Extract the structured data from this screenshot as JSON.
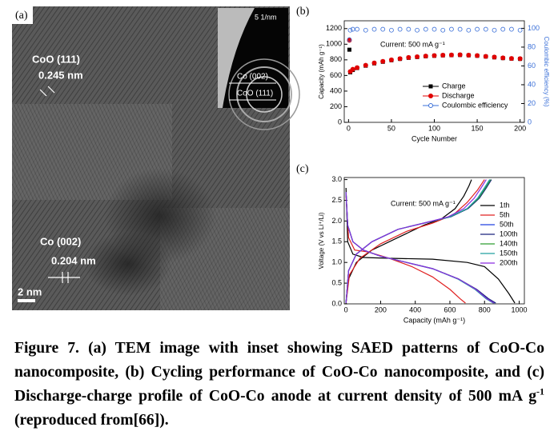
{
  "panel_a": {
    "label": "(a)",
    "annotations": [
      "CoO (111)",
      "0.245 nm",
      "Co (002)",
      "0.204 nm"
    ],
    "scale_bar": "2 nm",
    "inset": {
      "scale": "5 1/nm",
      "rings": [
        "Co  (002)",
        "CoO (111)"
      ]
    }
  },
  "chart_data": [
    {
      "type": "scatter",
      "panel_label": "(b)",
      "xlabel": "Cycle Number",
      "ylabel": "Capacity (mAh g⁻¹)",
      "y2label": "Coulombic efficiency (%)",
      "annotation": "Current: 500 mA g⁻¹",
      "x": [
        1,
        2,
        5,
        10,
        20,
        30,
        40,
        50,
        60,
        70,
        80,
        90,
        100,
        110,
        120,
        130,
        140,
        150,
        160,
        170,
        180,
        190,
        200
      ],
      "series": [
        {
          "name": "Charge",
          "color": "#000000",
          "marker": "square",
          "values": [
            930,
            640,
            670,
            695,
            725,
            755,
            775,
            795,
            812,
            826,
            836,
            845,
            852,
            857,
            860,
            862,
            858,
            852,
            842,
            832,
            822,
            815,
            812
          ]
        },
        {
          "name": "Discharge",
          "color": "#e00000",
          "marker": "circle",
          "values": [
            1050,
            650,
            680,
            700,
            730,
            760,
            780,
            800,
            815,
            830,
            840,
            848,
            855,
            860,
            862,
            865,
            860,
            855,
            845,
            835,
            825,
            818,
            815
          ]
        },
        {
          "name": "Coulombic efficiency",
          "color": "#3a6fd8",
          "marker": "open-circle",
          "axis": "y2",
          "values": [
            88,
            98,
            99,
            99,
            98,
            99,
            99,
            98,
            99,
            99,
            98,
            99,
            99,
            98,
            99,
            99,
            98,
            99,
            99,
            98,
            99,
            99,
            98
          ]
        }
      ],
      "xlim": [
        -5,
        205
      ],
      "xticks": [
        0,
        50,
        100,
        150,
        200
      ],
      "ylim": [
        0,
        1300
      ],
      "yticks": [
        0,
        200,
        400,
        600,
        800,
        1000,
        1200
      ],
      "y2lim": [
        0,
        108
      ],
      "y2ticks": [
        0,
        20,
        40,
        60,
        80,
        100
      ]
    },
    {
      "type": "line",
      "panel_label": "(c)",
      "xlabel": "Capacity (mAh g⁻¹)",
      "ylabel": "Voltage (V vs Li⁺/Li)",
      "annotation": "Current: 500 mA g⁻¹",
      "series": [
        {
          "name": "1th",
          "color": "#000000",
          "x": [
            0,
            10,
            40,
            100,
            250,
            500,
            700,
            800,
            880,
            940,
            975,
            null,
            0,
            15,
            60,
            150,
            300,
            450,
            550,
            630,
            680,
            710,
            725
          ],
          "values": [
            2.8,
            1.5,
            1.2,
            1.12,
            1.1,
            1.08,
            1.0,
            0.9,
            0.6,
            0.25,
            0.02,
            null,
            0.02,
            0.6,
            1.0,
            1.3,
            1.6,
            1.9,
            2.05,
            2.3,
            2.6,
            2.85,
            3.0
          ]
        },
        {
          "name": "5th",
          "color": "#e02020",
          "x": [
            0,
            15,
            50,
            130,
            250,
            380,
            500,
            600,
            660,
            690,
            null,
            0,
            20,
            80,
            200,
            350,
            500,
            620,
            700,
            760,
            800
          ],
          "values": [
            2.6,
            1.6,
            1.3,
            1.25,
            1.1,
            0.9,
            0.65,
            0.35,
            0.12,
            0.02,
            null,
            0.02,
            0.7,
            1.1,
            1.45,
            1.75,
            1.95,
            2.15,
            2.45,
            2.75,
            3.0
          ]
        },
        {
          "name": "50th",
          "color": "#2040e0",
          "x": [
            0,
            10,
            40,
            100,
            200,
            350,
            500,
            650,
            750,
            820,
            860,
            null,
            0,
            15,
            60,
            150,
            300,
            450,
            600,
            700,
            760,
            800,
            830
          ],
          "values": [
            2.7,
            1.9,
            1.5,
            1.3,
            1.15,
            1.0,
            0.85,
            0.6,
            0.35,
            0.12,
            0.02,
            null,
            0.02,
            0.8,
            1.2,
            1.5,
            1.8,
            1.95,
            2.1,
            2.3,
            2.55,
            2.8,
            3.0
          ]
        },
        {
          "name": "100th",
          "color": "#1a237e",
          "x": [
            0,
            10,
            40,
            100,
            200,
            350,
            500,
            650,
            755,
            825,
            865,
            null,
            0,
            15,
            60,
            150,
            300,
            450,
            605,
            705,
            770,
            810,
            840
          ],
          "values": [
            2.7,
            1.9,
            1.5,
            1.3,
            1.15,
            1.0,
            0.85,
            0.6,
            0.35,
            0.12,
            0.02,
            null,
            0.02,
            0.8,
            1.2,
            1.5,
            1.8,
            1.95,
            2.1,
            2.3,
            2.55,
            2.8,
            3.0
          ]
        },
        {
          "name": "140th",
          "color": "#2e9d32",
          "x": [
            0,
            10,
            40,
            100,
            200,
            350,
            500,
            650,
            750,
            815,
            855,
            null,
            0,
            15,
            60,
            150,
            300,
            450,
            600,
            700,
            765,
            805,
            835
          ],
          "values": [
            2.7,
            1.9,
            1.5,
            1.3,
            1.15,
            1.0,
            0.85,
            0.6,
            0.35,
            0.12,
            0.02,
            null,
            0.02,
            0.8,
            1.2,
            1.5,
            1.8,
            1.95,
            2.1,
            2.3,
            2.55,
            2.8,
            3.0
          ]
        },
        {
          "name": "150th",
          "color": "#20a0a0",
          "x": [
            0,
            10,
            40,
            100,
            200,
            350,
            500,
            645,
            745,
            810,
            850,
            null,
            0,
            15,
            60,
            150,
            300,
            450,
            600,
            700,
            760,
            800,
            830
          ],
          "values": [
            2.7,
            1.9,
            1.5,
            1.3,
            1.15,
            1.0,
            0.85,
            0.6,
            0.35,
            0.12,
            0.02,
            null,
            0.02,
            0.8,
            1.2,
            1.5,
            1.8,
            1.95,
            2.1,
            2.3,
            2.55,
            2.8,
            3.0
          ]
        },
        {
          "name": "200th",
          "color": "#8a2be2",
          "x": [
            0,
            10,
            40,
            100,
            200,
            350,
            500,
            650,
            750,
            815,
            855,
            null,
            0,
            15,
            60,
            150,
            300,
            450,
            590,
            680,
            740,
            780,
            810
          ],
          "values": [
            2.7,
            1.9,
            1.5,
            1.3,
            1.15,
            1.0,
            0.85,
            0.6,
            0.35,
            0.12,
            0.02,
            null,
            0.02,
            0.8,
            1.2,
            1.5,
            1.8,
            1.95,
            2.1,
            2.3,
            2.55,
            2.8,
            3.0
          ]
        }
      ],
      "xlim": [
        -10,
        1030
      ],
      "xticks": [
        0,
        200,
        400,
        600,
        800,
        1000
      ],
      "ylim": [
        0,
        3.05
      ],
      "yticks": [
        {
          "value": 0,
          "label": "0.0"
        },
        {
          "value": 0.5,
          "label": "0.5"
        },
        {
          "value": 1,
          "label": "1.0"
        },
        {
          "value": 1.5,
          "label": "1.5"
        },
        {
          "value": 2,
          "label": "2.0"
        },
        {
          "value": 2.5,
          "label": "2.5"
        },
        {
          "value": 3,
          "label": "3.0"
        }
      ]
    }
  ],
  "caption": {
    "text": "Figure 7. (a) TEM image with inset showing SAED patterns of CoO-Co nanocomposite, (b) Cycling performance of CoO-Co nanocomposite, and (c) Discharge-charge profile of CoO-Co anode at current density of 500 mA g",
    "superscript": "-1",
    "end": " (reproduced from[66])."
  }
}
